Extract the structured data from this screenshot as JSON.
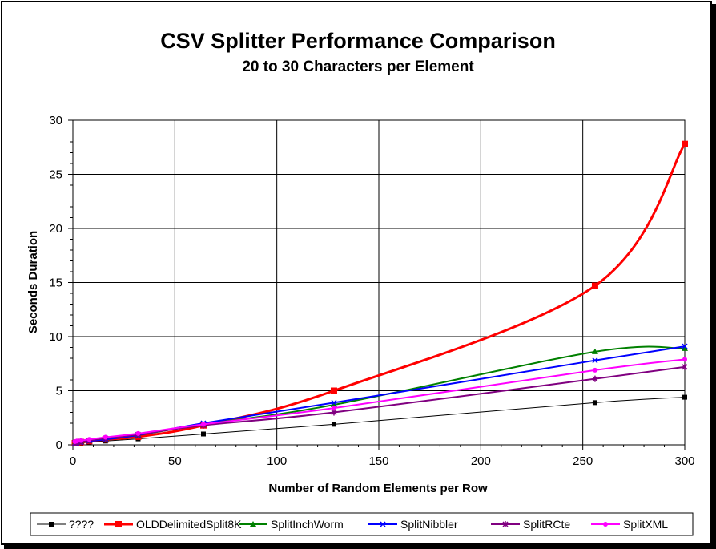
{
  "chart_data": {
    "type": "line",
    "title": "CSV Splitter Performance Comparison",
    "subtitle": "20 to 30 Characters per Element",
    "xlabel": "Number of Random Elements per Row",
    "ylabel": "Seconds Duration",
    "xlim": [
      0,
      300
    ],
    "ylim": [
      0,
      30
    ],
    "xticks": [
      0,
      50,
      100,
      150,
      200,
      250,
      300
    ],
    "yticks": [
      0,
      5,
      10,
      15,
      20,
      25,
      30
    ],
    "grid": true,
    "legend_position": "bottom",
    "x": [
      1,
      2,
      4,
      8,
      16,
      32,
      64,
      128,
      256,
      300
    ],
    "series": [
      {
        "name": "????",
        "color": "#000000",
        "marker": "square",
        "width": 1,
        "values": [
          0.1,
          0.1,
          0.15,
          0.25,
          0.35,
          0.55,
          1.0,
          1.9,
          3.9,
          4.4
        ]
      },
      {
        "name": "OLDDelimitedSplit8K",
        "color": "#ff0000",
        "marker": "square",
        "width": 3,
        "values": [
          0.15,
          0.2,
          0.25,
          0.35,
          0.5,
          0.75,
          1.8,
          5.0,
          14.7,
          27.8
        ]
      },
      {
        "name": "SplitInchWorm",
        "color": "#008000",
        "marker": "triangle",
        "width": 2,
        "values": [
          0.2,
          0.25,
          0.3,
          0.4,
          0.55,
          0.9,
          1.9,
          3.7,
          8.6,
          8.9
        ]
      },
      {
        "name": "SplitNibbler",
        "color": "#0000ff",
        "marker": "x",
        "width": 2,
        "values": [
          0.15,
          0.2,
          0.25,
          0.35,
          0.5,
          0.9,
          2.0,
          3.9,
          7.8,
          9.1
        ]
      },
      {
        "name": "SplitRCte",
        "color": "#800080",
        "marker": "star",
        "width": 2,
        "values": [
          0.2,
          0.25,
          0.3,
          0.4,
          0.6,
          0.95,
          1.8,
          3.0,
          6.1,
          7.2
        ]
      },
      {
        "name": "SplitXML",
        "color": "#ff00ff",
        "marker": "circle",
        "width": 2,
        "values": [
          0.3,
          0.35,
          0.4,
          0.5,
          0.7,
          1.05,
          1.9,
          3.4,
          6.9,
          7.9
        ]
      }
    ]
  }
}
